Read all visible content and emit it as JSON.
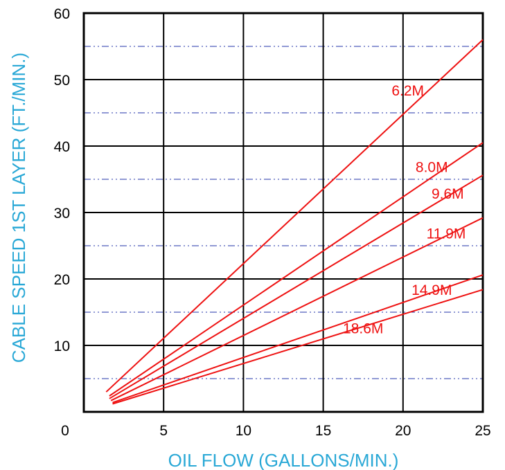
{
  "chart_data": {
    "type": "line",
    "xlabel": "OIL FLOW (GALLONS/MIN.)",
    "ylabel": "CABLE SPEED 1ST LAYER (FT./MIN.)",
    "xlim": [
      0,
      25
    ],
    "ylim": [
      0,
      60
    ],
    "x_ticks": [
      "0",
      "5",
      "10",
      "15",
      "20",
      "25"
    ],
    "y_ticks": [
      "10",
      "20",
      "30",
      "40",
      "50",
      "60"
    ],
    "major_grid": true,
    "minor_dashdot_grid_y": [
      5,
      15,
      25,
      35,
      45,
      55
    ],
    "series": [
      {
        "name": "6.2M",
        "x": [
          1.4,
          25
        ],
        "y": [
          3.0,
          56.0
        ]
      },
      {
        "name": "8.0M",
        "x": [
          1.6,
          25
        ],
        "y": [
          2.4,
          40.5
        ]
      },
      {
        "name": "9.6M",
        "x": [
          1.6,
          25
        ],
        "y": [
          2.0,
          35.6
        ]
      },
      {
        "name": "11.9M",
        "x": [
          1.7,
          25
        ],
        "y": [
          1.7,
          29.2
        ]
      },
      {
        "name": "14.9M",
        "x": [
          1.8,
          25
        ],
        "y": [
          1.4,
          20.6
        ]
      },
      {
        "name": "18.6M",
        "x": [
          1.8,
          25
        ],
        "y": [
          1.2,
          18.4
        ]
      }
    ]
  },
  "colors": {
    "series": "#ee1111",
    "axis_title": "#29a8d6",
    "grid": "#000000",
    "minor_grid": "#2233aa"
  }
}
